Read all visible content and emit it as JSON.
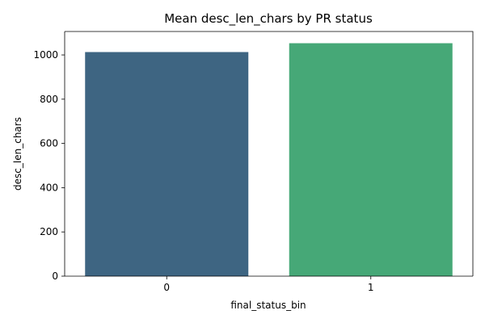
{
  "chart_data": {
    "type": "bar",
    "title": "Mean desc_len_chars by PR status",
    "xlabel": "final_status_bin",
    "ylabel": "desc_len_chars",
    "categories": [
      "0",
      "1"
    ],
    "values": [
      1013,
      1053
    ],
    "ylim": [
      0,
      1106
    ],
    "yticks": [
      0,
      200,
      400,
      600,
      800,
      1000
    ],
    "colors": [
      "#3e6582",
      "#46a877"
    ],
    "grid": false,
    "legend": "none"
  }
}
